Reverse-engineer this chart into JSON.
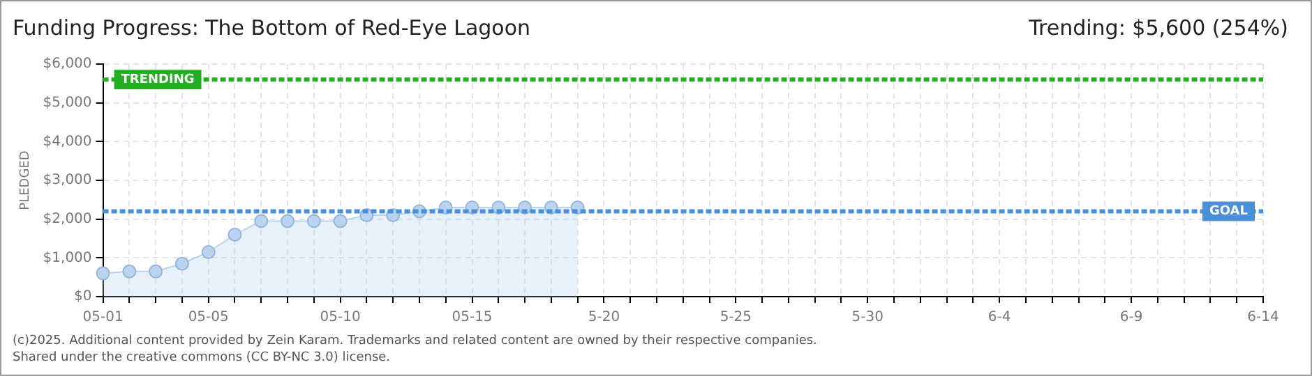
{
  "chart_data": {
    "type": "area",
    "title": "Funding Progress: The Bottom of Red-Eye Lagoon",
    "subtitle": "Trending: $5,600 (254%)",
    "ylabel": "PLEDGED",
    "categories": [
      "05-01",
      null,
      null,
      null,
      "05-05",
      null,
      null,
      null,
      null,
      "05-10",
      null,
      null,
      null,
      null,
      "05-15",
      null,
      null,
      null,
      null,
      "5-20",
      null,
      null,
      null,
      null,
      "5-25",
      null,
      null,
      null,
      null,
      "5-30",
      null,
      null,
      null,
      null,
      "6-4",
      null,
      null,
      null,
      null,
      "6-9",
      null,
      null,
      null,
      null,
      "6-14"
    ],
    "series": [
      {
        "color": "#b8d4f0",
        "values": [
          600,
          650,
          650,
          850,
          1150,
          1600,
          1950,
          1950,
          1950,
          1950,
          2100,
          2100,
          2200,
          2300,
          2300,
          2300,
          2300,
          2300,
          2300,
          null,
          null,
          null,
          null,
          null,
          null,
          null,
          null,
          null,
          null,
          null,
          null,
          null,
          null,
          null,
          null,
          null,
          null,
          null,
          null,
          null,
          null,
          null,
          null,
          null,
          null
        ]
      }
    ],
    "ylim": [
      0,
      6000
    ],
    "yticks": [
      {
        "value": 0,
        "label": "$0"
      },
      {
        "value": 1000,
        "label": "$1,000"
      },
      {
        "value": 2000,
        "label": "$2,000"
      },
      {
        "value": 3000,
        "label": "$3,000"
      },
      {
        "value": 4000,
        "label": "$4,000"
      },
      {
        "value": 5000,
        "label": "$5,000"
      },
      {
        "value": 6000,
        "label": "$6,000"
      }
    ],
    "ref_lines": [
      {
        "axis": "y",
        "value": 5600,
        "label": "TRENDING",
        "color": "#22b022",
        "line_style": "dashed"
      },
      {
        "axis": "y",
        "value": 2200,
        "label": "GOAL",
        "color": "#4a8fd8",
        "line_style": "dashed"
      }
    ],
    "grid": true,
    "legend": false,
    "marker": "circle",
    "annotations": [
      "(c)2025. Additional content provided by Zein Karam. Trademarks and related content are owned by their respective companies.",
      "Shared under the creative commons (CC BY-NC 3.0) license."
    ]
  }
}
